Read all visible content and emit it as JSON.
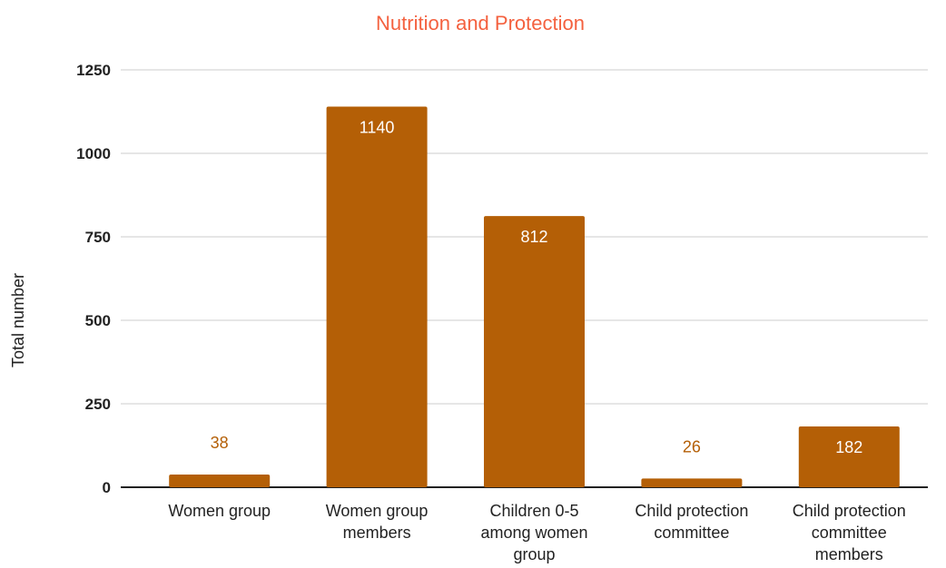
{
  "colors": {
    "bar": "#b45f06",
    "title": "#f4613f",
    "label_inside": "#ffffff",
    "label_outside": "#b45f06",
    "grid": "#cccccc",
    "axis": "#222222"
  },
  "chart_data": {
    "type": "bar",
    "title": "Nutrition and Protection",
    "xlabel": "",
    "ylabel": "Total number",
    "ylim": [
      0,
      1250
    ],
    "yticks": [
      0,
      250,
      500,
      750,
      1000,
      1250
    ],
    "grid": true,
    "legend": "none",
    "categories": [
      "Women group",
      "Women group members",
      "Children 0-5 among women group",
      "Child protection committee",
      "Child protection committee members"
    ],
    "category_lines": [
      [
        "Women group"
      ],
      [
        "Women group",
        "members"
      ],
      [
        "Children 0-5",
        "among women",
        "group"
      ],
      [
        "Child protection",
        "committee"
      ],
      [
        "Child protection",
        "committee",
        "members"
      ]
    ],
    "values": [
      38,
      1140,
      812,
      26,
      182
    ]
  }
}
